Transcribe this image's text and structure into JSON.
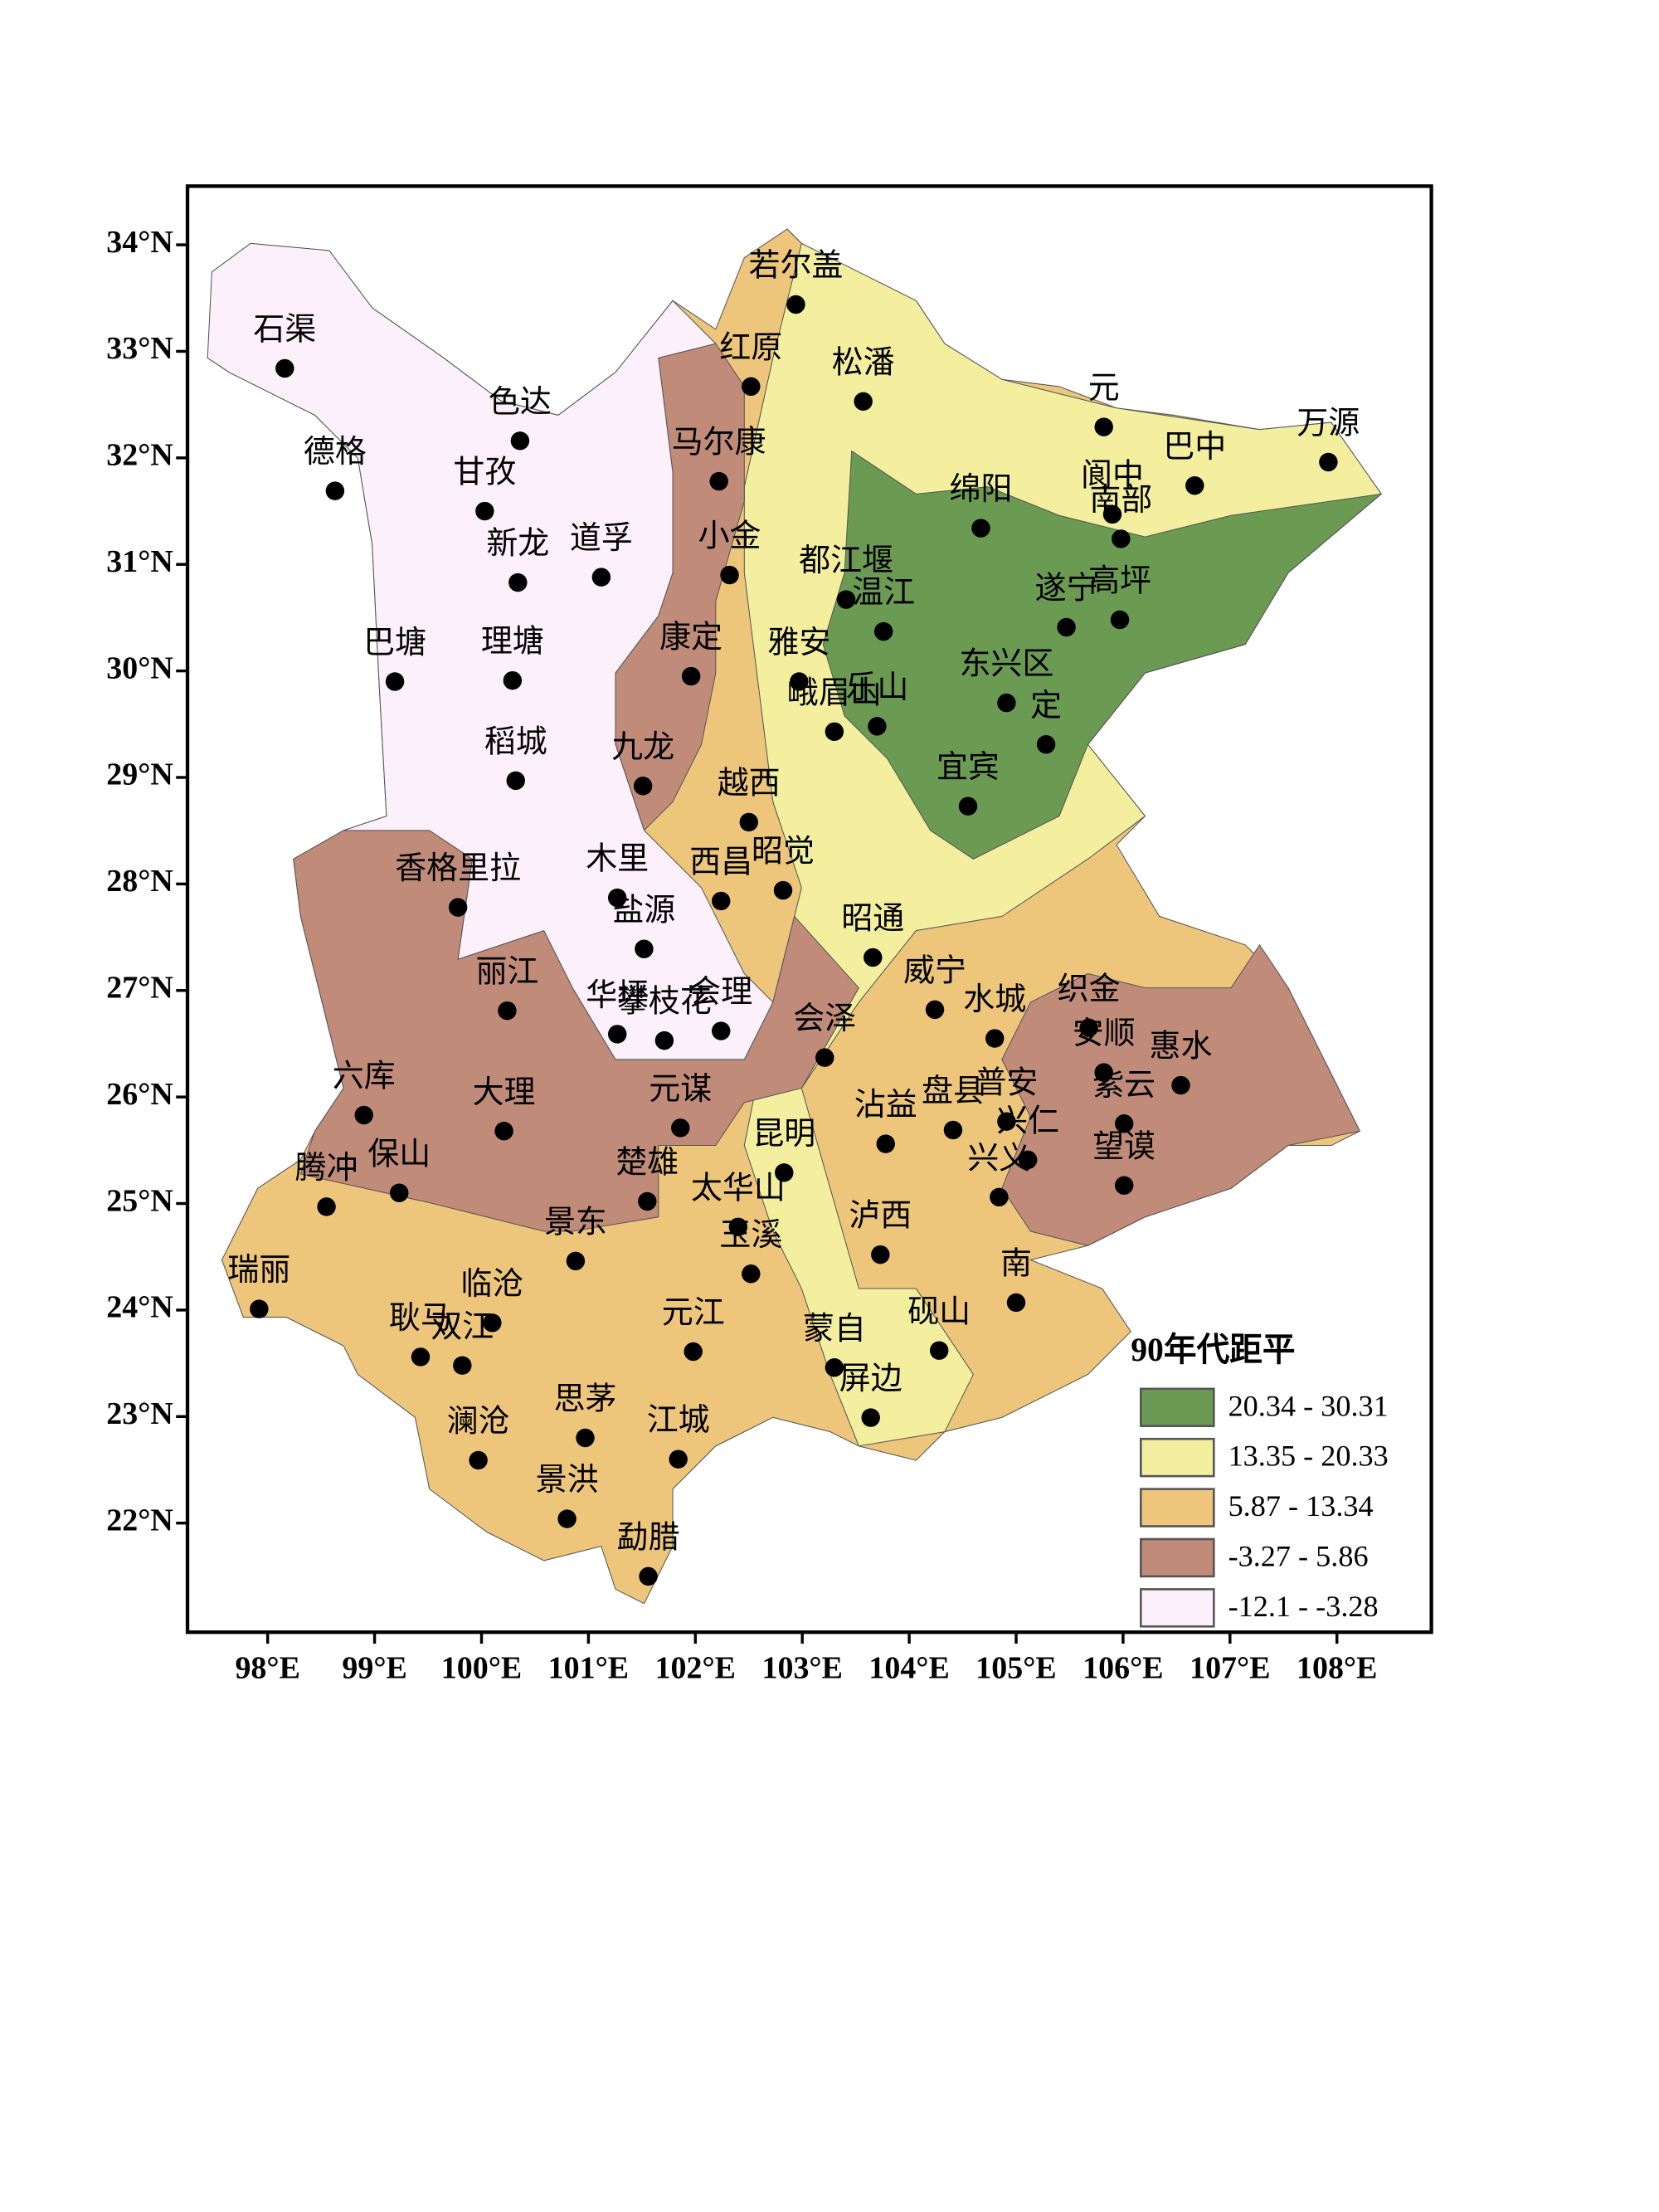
{
  "legend": {
    "title": "90年代距平",
    "items": [
      {
        "label": "20.34 - 30.31",
        "color": "#6b9a52"
      },
      {
        "label": "13.35 - 20.33",
        "color": "#f3ef9f"
      },
      {
        "label": "5.87 - 13.34",
        "color": "#edc67b"
      },
      {
        "label": "-3.27 - 5.86",
        "color": "#c08b79"
      },
      {
        "label": "-12.1 - -3.28",
        "color": "#fcf0fb"
      }
    ]
  },
  "axes": {
    "xticks": [
      {
        "value": 98,
        "label": "98°E"
      },
      {
        "value": 99,
        "label": "99°E"
      },
      {
        "value": 100,
        "label": "100°E"
      },
      {
        "value": 101,
        "label": "101°E"
      },
      {
        "value": 102,
        "label": "102°E"
      },
      {
        "value": 103,
        "label": "103°E"
      },
      {
        "value": 104,
        "label": "104°E"
      },
      {
        "value": 105,
        "label": "105°E"
      },
      {
        "value": 106,
        "label": "106°E"
      },
      {
        "value": 107,
        "label": "107°E"
      },
      {
        "value": 108,
        "label": "108°E"
      }
    ],
    "yticks": [
      {
        "value": 34,
        "label": "34°N"
      },
      {
        "value": 33,
        "label": "33°N"
      },
      {
        "value": 32,
        "label": "32°N"
      },
      {
        "value": 31,
        "label": "31°N"
      },
      {
        "value": 30,
        "label": "30°N"
      },
      {
        "value": 29,
        "label": "29°N"
      },
      {
        "value": 28,
        "label": "28°N"
      },
      {
        "value": 27,
        "label": "27°N"
      },
      {
        "value": 26,
        "label": "26°N"
      },
      {
        "value": 25,
        "label": "25°N"
      },
      {
        "value": 24,
        "label": "24°N"
      },
      {
        "value": 23,
        "label": "23°N"
      },
      {
        "value": 22,
        "label": "22°N"
      }
    ]
  },
  "stations": [
    {
      "name": "石渠",
      "lon": 98.16,
      "lat": 32.84
    },
    {
      "name": "德格",
      "lon": 98.63,
      "lat": 31.69
    },
    {
      "name": "色达",
      "lon": 100.36,
      "lat": 32.16
    },
    {
      "name": "甘孜",
      "lon": 100.03,
      "lat": 31.5
    },
    {
      "name": "新龙",
      "lon": 100.34,
      "lat": 30.83
    },
    {
      "name": "道孚",
      "lon": 101.12,
      "lat": 30.88
    },
    {
      "name": "巴塘",
      "lon": 99.19,
      "lat": 29.9
    },
    {
      "name": "理塘",
      "lon": 100.29,
      "lat": 29.91
    },
    {
      "name": "稻城",
      "lon": 100.32,
      "lat": 28.97
    },
    {
      "name": "红原",
      "lon": 102.52,
      "lat": 32.67
    },
    {
      "name": "若尔盖",
      "lon": 102.94,
      "lat": 33.44
    },
    {
      "name": "松潘",
      "lon": 103.57,
      "lat": 32.53
    },
    {
      "name": "马尔康",
      "lon": 102.22,
      "lat": 31.78
    },
    {
      "name": "小金",
      "lon": 102.32,
      "lat": 30.9
    },
    {
      "name": "康定",
      "lon": 101.96,
      "lat": 29.95
    },
    {
      "name": "九龙",
      "lon": 101.51,
      "lat": 28.92
    },
    {
      "name": "都江堰",
      "lon": 103.41,
      "lat": 30.67
    },
    {
      "name": "温江",
      "lon": 103.76,
      "lat": 30.37
    },
    {
      "name": "雅安",
      "lon": 102.97,
      "lat": 29.9
    },
    {
      "name": "峨眉山",
      "lon": 103.3,
      "lat": 29.43
    },
    {
      "name": "乐山",
      "lon": 103.7,
      "lat": 29.48
    },
    {
      "name": "绵阳",
      "lon": 104.67,
      "lat": 31.34
    },
    {
      "name": "元",
      "lon": 105.82,
      "lat": 32.29
    },
    {
      "name": "阆中",
      "lon": 105.9,
      "lat": 31.47
    },
    {
      "name": "南部",
      "lon": 105.98,
      "lat": 31.24
    },
    {
      "name": "巴中",
      "lon": 106.67,
      "lat": 31.74
    },
    {
      "name": "万源",
      "lon": 107.92,
      "lat": 31.96
    },
    {
      "name": "遂宁",
      "lon": 105.47,
      "lat": 30.41
    },
    {
      "name": "高坪",
      "lon": 105.97,
      "lat": 30.48
    },
    {
      "name": "东兴区",
      "lon": 104.91,
      "lat": 29.7
    },
    {
      "name": "定",
      "lon": 105.28,
      "lat": 29.31
    },
    {
      "name": "宜宾",
      "lon": 104.55,
      "lat": 28.73
    },
    {
      "name": "越西",
      "lon": 102.5,
      "lat": 28.58
    },
    {
      "name": "西昌",
      "lon": 102.24,
      "lat": 27.84
    },
    {
      "name": "昭觉",
      "lon": 102.82,
      "lat": 27.94
    },
    {
      "name": "香格里拉",
      "lon": 99.78,
      "lat": 27.78
    },
    {
      "name": "木里",
      "lon": 101.27,
      "lat": 27.87
    },
    {
      "name": "盐源",
      "lon": 101.52,
      "lat": 27.39
    },
    {
      "name": "丽江",
      "lon": 100.24,
      "lat": 26.81
    },
    {
      "name": "华坪",
      "lon": 101.27,
      "lat": 26.59
    },
    {
      "name": "会理",
      "lon": 102.24,
      "lat": 26.62
    },
    {
      "name": "攀枝花",
      "lon": 101.71,
      "lat": 26.53
    },
    {
      "name": "会泽",
      "lon": 103.21,
      "lat": 26.37
    },
    {
      "name": "昭通",
      "lon": 103.66,
      "lat": 27.31
    },
    {
      "name": "威宁",
      "lon": 104.24,
      "lat": 26.82
    },
    {
      "name": "水城",
      "lon": 104.8,
      "lat": 26.55
    },
    {
      "name": "织金",
      "lon": 105.68,
      "lat": 26.65
    },
    {
      "name": "安顺",
      "lon": 105.82,
      "lat": 26.23
    },
    {
      "name": "惠水",
      "lon": 106.54,
      "lat": 26.11
    },
    {
      "name": "六库",
      "lon": 98.9,
      "lat": 25.83
    },
    {
      "name": "大理",
      "lon": 100.21,
      "lat": 25.68
    },
    {
      "name": "元谋",
      "lon": 101.86,
      "lat": 25.71
    },
    {
      "name": "沾益",
      "lon": 103.78,
      "lat": 25.56
    },
    {
      "name": "盘县",
      "lon": 104.41,
      "lat": 25.69
    },
    {
      "name": "普安",
      "lon": 104.91,
      "lat": 25.77
    },
    {
      "name": "兴仁",
      "lon": 105.11,
      "lat": 25.41
    },
    {
      "name": "紫云",
      "lon": 106.01,
      "lat": 25.75
    },
    {
      "name": "望谟",
      "lon": 106.01,
      "lat": 25.17
    },
    {
      "name": "兴义",
      "lon": 104.84,
      "lat": 25.06
    },
    {
      "name": "保山",
      "lon": 99.23,
      "lat": 25.1
    },
    {
      "name": "腾冲",
      "lon": 98.55,
      "lat": 24.97
    },
    {
      "name": "楚雄",
      "lon": 101.55,
      "lat": 25.02
    },
    {
      "name": "太华山",
      "lon": 102.4,
      "lat": 24.78
    },
    {
      "name": "昆明",
      "lon": 102.83,
      "lat": 25.29
    },
    {
      "name": "泸西",
      "lon": 103.73,
      "lat": 24.52
    },
    {
      "name": "玉溪",
      "lon": 102.52,
      "lat": 24.34
    },
    {
      "name": "景东",
      "lon": 100.88,
      "lat": 24.46
    },
    {
      "name": "瑞丽",
      "lon": 97.92,
      "lat": 24.01
    },
    {
      "name": "临沧",
      "lon": 100.1,
      "lat": 23.88
    },
    {
      "name": "耿马",
      "lon": 99.43,
      "lat": 23.56
    },
    {
      "name": "双江",
      "lon": 99.82,
      "lat": 23.48
    },
    {
      "name": "元江",
      "lon": 101.98,
      "lat": 23.61
    },
    {
      "name": "蒙自",
      "lon": 103.3,
      "lat": 23.46
    },
    {
      "name": "屏边",
      "lon": 103.64,
      "lat": 22.99
    },
    {
      "name": "砚山",
      "lon": 104.28,
      "lat": 23.62
    },
    {
      "name": "南",
      "lon": 105.0,
      "lat": 24.07
    },
    {
      "name": "思茅",
      "lon": 100.97,
      "lat": 22.8
    },
    {
      "name": "澜沧",
      "lon": 99.97,
      "lat": 22.59
    },
    {
      "name": "江城",
      "lon": 101.84,
      "lat": 22.6
    },
    {
      "name": "景洪",
      "lon": 100.8,
      "lat": 22.04
    },
    {
      "name": "勐腊",
      "lon": 101.56,
      "lat": 21.5
    }
  ]
}
